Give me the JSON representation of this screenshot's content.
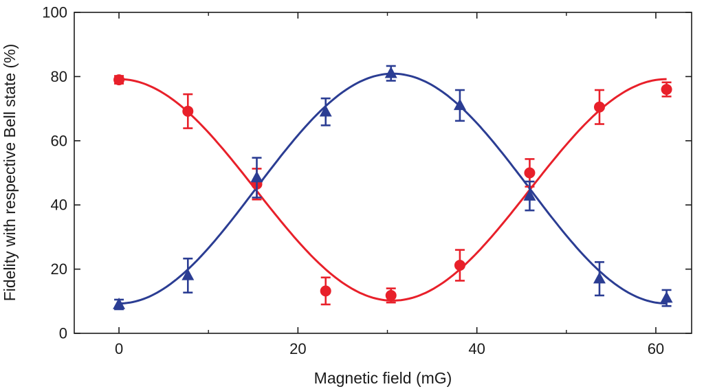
{
  "chart_data": {
    "type": "scatter",
    "title": "",
    "xlabel": "Magnetic field (mG)",
    "ylabel": "Fidelity with respective Bell state (%)",
    "xlim": [
      -5,
      64
    ],
    "ylim": [
      0,
      100
    ],
    "xticks": [
      0,
      20,
      40,
      60
    ],
    "yticks": [
      0,
      20,
      40,
      60,
      80,
      100
    ],
    "xtick_labels": [
      "0",
      "20",
      "40",
      "60"
    ],
    "ytick_labels": [
      "0",
      "20",
      "40",
      "60",
      "80",
      "100"
    ],
    "grid": false,
    "legend": "none",
    "series": [
      {
        "marker": "circle",
        "color": "#e8202a",
        "x": [
          0,
          7.7,
          15.4,
          23.1,
          30.4,
          38.1,
          45.9,
          53.7,
          61.2
        ],
        "y": [
          79,
          69.2,
          46.5,
          13.2,
          11.8,
          21.2,
          50,
          70.5,
          76
        ],
        "err": [
          1.2,
          5.3,
          4.8,
          4.2,
          2.2,
          4.8,
          4.3,
          5.3,
          2.2
        ],
        "fit": {
          "amplitude": 34.5,
          "offset": 44.7,
          "period": 61.2
        }
      },
      {
        "marker": "triangle",
        "color": "#2b3d93",
        "x": [
          0,
          7.7,
          15.4,
          23.1,
          30.4,
          38.1,
          45.9,
          53.7,
          61.2
        ],
        "y": [
          9,
          18,
          48.5,
          69,
          81,
          71,
          42.8,
          17,
          11
        ],
        "err": [
          1.5,
          5.3,
          6.2,
          4.2,
          2.3,
          4.8,
          4.5,
          5.2,
          2.5
        ],
        "fit": {
          "amplitude": -35.8,
          "offset": 45.1,
          "period": 61.2
        }
      }
    ]
  }
}
